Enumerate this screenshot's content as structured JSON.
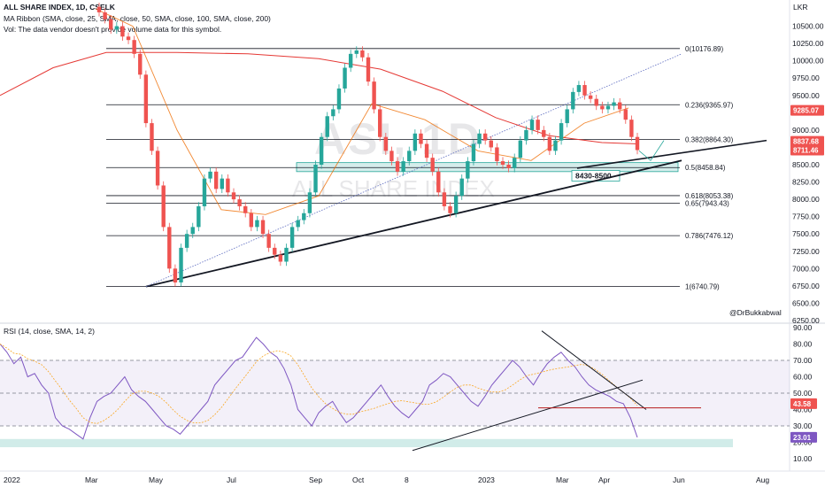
{
  "header": {
    "symbol": "ALL SHARE INDEX, 1D, CSELK",
    "ma_ribbon": "MA Ribbon (SMA, close, 25, SMA, close, 50, SMA, close, 100, SMA, close, 200)",
    "vol": "Vol: The data vendor doesn't provide volume data for this symbol.",
    "rsi": "RSI (14, close, SMA, 14, 2)"
  },
  "watermark": {
    "ticker": "ASI, 1D",
    "name": "ALL SHARE INDEX"
  },
  "author": "@DrBukkabwal",
  "currency": "LKR",
  "colors": {
    "up": "#26a69a",
    "down": "#ef5350",
    "ma200": "#e53935",
    "rsi": "#7e57c2",
    "rsi_ma": "#f9a825",
    "zone": "#b2dfdb"
  },
  "chart_data": [
    {
      "type": "candlestick",
      "ylim": [
        6250,
        10750
      ],
      "price_axis": [
        "10500.00",
        "10250.00",
        "10000.00",
        "9750.00",
        "9500.00",
        "9250.00",
        "9000.00",
        "8750.00",
        "8500.00",
        "8250.00",
        "8000.00",
        "7750.00",
        "7500.00",
        "7250.00",
        "7000.00",
        "6750.00",
        "6500.00",
        "6250.00"
      ],
      "price_axis_values": [
        10500,
        10250,
        10000,
        9750,
        9500,
        9250,
        9000,
        8750,
        8500,
        8250,
        8000,
        7750,
        7500,
        7250,
        7000,
        6750,
        6500,
        6250
      ],
      "x_labels": [
        "2022",
        "Mar",
        "May",
        "Jul",
        "Sep",
        "Oct",
        "8",
        "2023",
        "Mar",
        "Apr",
        "Jun",
        "Aug"
      ],
      "fib_levels": [
        {
          "label": "0(10176.89)",
          "value": 10176.89
        },
        {
          "label": "0.236(9365.97)",
          "value": 9365.97
        },
        {
          "label": "0.382(8864.30)",
          "value": 8864.3
        },
        {
          "label": "0.5(8458.84)",
          "value": 8458.84
        },
        {
          "label": "0.618(8053.38)",
          "value": 8053.38
        },
        {
          "label": "0.65(7943.43)",
          "value": 7943.43
        },
        {
          "label": "0.786(7476.12)",
          "value": 7476.12
        },
        {
          "label": "1(6740.79)",
          "value": 6740.79
        }
      ],
      "zone_label": "8430-8500",
      "zone": [
        8430,
        8500
      ],
      "price_tags": [
        {
          "label": "9285.07",
          "value": 9285.07,
          "color": "#ef5350"
        },
        {
          "label": "8837.68",
          "value": 8837.68,
          "color": "#ef5350"
        },
        {
          "label": "8711.46",
          "value": 8711.46,
          "color": "#ef5350"
        }
      ],
      "closes": [
        10700,
        10600,
        10450,
        10500,
        10350,
        10300,
        10100,
        9800,
        9100,
        8700,
        8200,
        7600,
        7000,
        6800,
        7300,
        7500,
        7600,
        7900,
        8300,
        8400,
        8150,
        8300,
        8100,
        8000,
        7900,
        7800,
        7600,
        7700,
        7500,
        7300,
        7200,
        7100,
        7300,
        7600,
        7700,
        7800,
        8100,
        8500,
        8900,
        9200,
        9300,
        9600,
        9900,
        10100,
        10150,
        10050,
        9700,
        9300,
        8900,
        8700,
        8550,
        8400,
        8550,
        8700,
        8950,
        8800,
        8600,
        8400,
        8100,
        7900,
        7800,
        8050,
        8300,
        8550,
        8800,
        8950,
        8850,
        8750,
        8550,
        8500,
        8450,
        8600,
        8850,
        9000,
        9150,
        9000,
        8900,
        8700,
        8850,
        9100,
        9300,
        9550,
        9650,
        9500,
        9450,
        9350,
        9300,
        9350,
        9400,
        9300,
        9150,
        8900,
        8711
      ]
    },
    {
      "type": "line",
      "ylim": [
        10,
        90
      ],
      "rsi_axis": [
        "90.00",
        "80.00",
        "70.00",
        "60.00",
        "50.00",
        "40.00",
        "30.00",
        "20.00",
        "10.00"
      ],
      "rsi_axis_values": [
        90,
        80,
        70,
        60,
        50,
        40,
        30,
        20,
        10
      ],
      "bands": [
        70,
        50,
        30
      ],
      "rsi_tags": [
        {
          "label": "43.58",
          "value": 43.58,
          "color": "#ef5350"
        },
        {
          "label": "23.01",
          "value": 23.01,
          "color": "#7e57c2"
        }
      ],
      "rsi": [
        80,
        75,
        68,
        72,
        60,
        62,
        55,
        50,
        35,
        30,
        28,
        25,
        22,
        35,
        45,
        48,
        50,
        55,
        60,
        52,
        48,
        45,
        40,
        35,
        30,
        28,
        25,
        30,
        35,
        40,
        45,
        55,
        60,
        65,
        70,
        72,
        78,
        84,
        80,
        75,
        72,
        65,
        55,
        40,
        35,
        30,
        38,
        42,
        45,
        38,
        32,
        35,
        40,
        45,
        50,
        55,
        48,
        42,
        38,
        35,
        40,
        45,
        55,
        58,
        62,
        60,
        55,
        50,
        45,
        42,
        48,
        55,
        60,
        65,
        70,
        66,
        60,
        55,
        62,
        68,
        72,
        75,
        70,
        66,
        60,
        55,
        52,
        50,
        48,
        45,
        43.58,
        35,
        23.01
      ]
    }
  ]
}
